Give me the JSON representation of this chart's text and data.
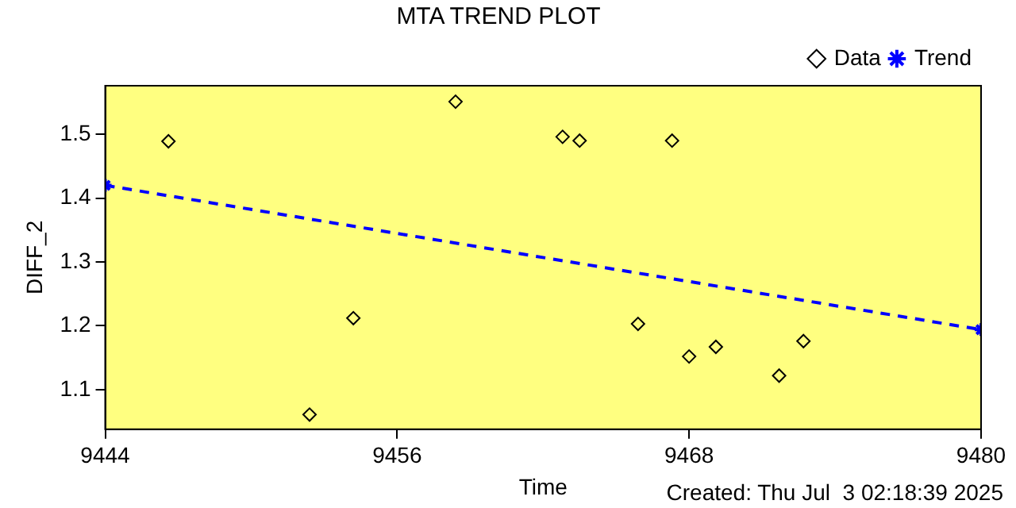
{
  "chart_data": {
    "type": "scatter",
    "title": "MTA TREND PLOT",
    "xlabel": "Time",
    "ylabel": "DIFF_2",
    "xlim": [
      9444,
      9480
    ],
    "xticks": [
      9444,
      9456,
      9468,
      9480
    ],
    "ylim": [
      1.038,
      1.576
    ],
    "yticks": [
      1.1,
      1.2,
      1.3,
      1.4,
      1.5
    ],
    "grid": false,
    "legend": "top right",
    "annotations": [
      "Created: Thu Jul  3 02:18:39 2025"
    ],
    "series": [
      {
        "name": "Data",
        "type": "scatter",
        "color": "#000000",
        "marker": "diamond",
        "x": [
          9446.6,
          9452.4,
          9454.2,
          9458.4,
          9462.8,
          9463.5,
          9465.9,
          9467.3,
          9468.0,
          9469.1,
          9471.7,
          9472.7
        ],
        "values": [
          1.489,
          1.061,
          1.212,
          1.551,
          1.496,
          1.49,
          1.203,
          1.49,
          1.152,
          1.167,
          1.122,
          1.176
        ]
      },
      {
        "name": "Trend",
        "type": "line",
        "color": "#0000ff",
        "marker": "cross",
        "line_style": "dashed",
        "x": [
          9444,
          9480
        ],
        "values": [
          1.42,
          1.194
        ]
      }
    ]
  }
}
